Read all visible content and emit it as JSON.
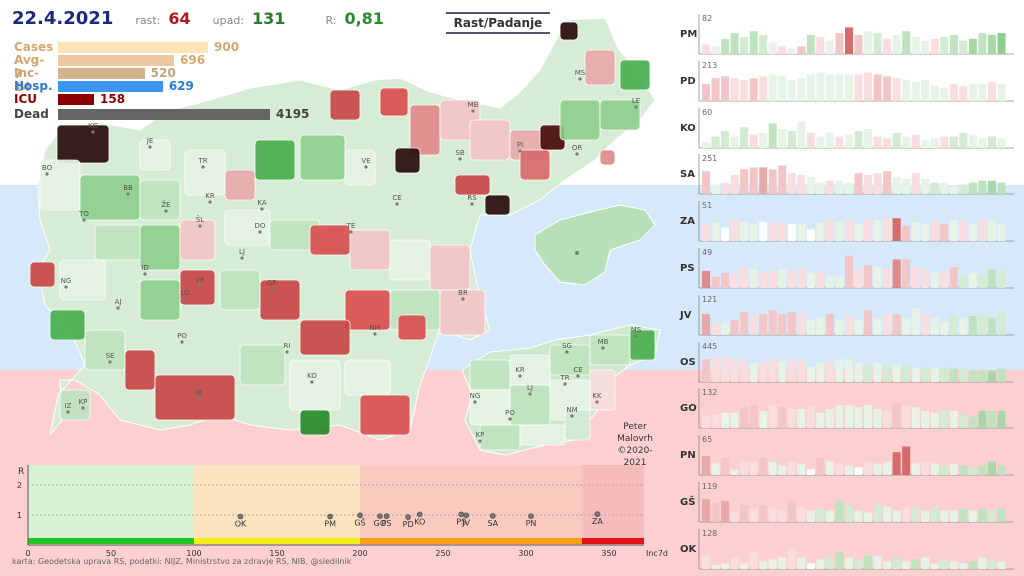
{
  "header": {
    "date": "22.4.2021",
    "rast_label": "rast:",
    "rast_value": "64",
    "upad_label": "upad:",
    "upad_value": "131",
    "r_label": "R:",
    "r_value": "0,81"
  },
  "title": "Rast/Padanje",
  "stats": [
    {
      "label": "Cases",
      "value": "900",
      "num": 900,
      "color": "#fde3b8",
      "text_color": "#d4a76a"
    },
    {
      "label": "Avg-7",
      "value": "696",
      "num": 696,
      "color": "#ecc7a0",
      "text_color": "#d4a76a"
    },
    {
      "label": "Inc-14",
      "value": "520",
      "num": 520,
      "color": "#d2b48c",
      "text_color": "#c4a37a"
    },
    {
      "label": "Hosp.",
      "value": "629",
      "num": 629,
      "color": "#3c96f0",
      "text_color": "#2a7ad6"
    },
    {
      "label": "ICU",
      "value": "158",
      "num": 158,
      "color": "#8b0000",
      "text_color": "#8b0000"
    },
    {
      "label": "Dead",
      "value": "4195",
      "num": 4195,
      "color": "#666666",
      "text_color": "#444444"
    }
  ],
  "map_labels": [
    "KG",
    "JE",
    "BO",
    "TR",
    "BB",
    "KR",
    "ŽE",
    "TO",
    "ŠL",
    "KA",
    "DO",
    "LJ",
    "ID",
    "VR",
    "NG",
    "AJ",
    "LO",
    "PO",
    "GR",
    "RI",
    "SE",
    "KO",
    "IB",
    "IZ",
    "KP",
    "VE",
    "CE",
    "SB",
    "PI",
    "OR",
    "LE",
    "MS",
    "MB",
    "RS",
    "NM",
    "BR",
    "TE"
  ],
  "inset1_labels": [
    "KR",
    "LJ",
    "TR",
    "CE",
    "MB",
    "MS",
    "SG",
    "NG",
    "PO",
    "NM",
    "KK",
    "KP"
  ],
  "scatter": {
    "r_axis_label": "R",
    "y_ticks": [
      "2",
      "1"
    ],
    "x_ticks": [
      "0",
      "50",
      "100",
      "150",
      "200",
      "250",
      "300",
      "350"
    ],
    "x_label": "Inc7d",
    "points": [
      {
        "label": "OK",
        "x": 128,
        "y": 0.95
      },
      {
        "label": "PM",
        "x": 182,
        "y": 0.95
      },
      {
        "label": "GŠ",
        "x": 200,
        "y": 0.99
      },
      {
        "label": "GO",
        "x": 212,
        "y": 0.96
      },
      {
        "label": "PS",
        "x": 216,
        "y": 0.96
      },
      {
        "label": "PD",
        "x": 229,
        "y": 0.93
      },
      {
        "label": "KO",
        "x": 236,
        "y": 1.02
      },
      {
        "label": "PS",
        "x": 261,
        "y": 1.02
      },
      {
        "label": "JV",
        "x": 264,
        "y": 0.99
      },
      {
        "label": "SA",
        "x": 280,
        "y": 0.97
      },
      {
        "label": "PN",
        "x": 303,
        "y": 0.96
      },
      {
        "label": "ZA",
        "x": 343,
        "y": 1.03
      }
    ]
  },
  "credit": "karta: Geodetska uprava RS,  podatki: NIJZ, Ministrstvo za zdravje RS, NIB, @sledilnik",
  "author": [
    "Peter",
    "Malovrh",
    "©2020-2021"
  ],
  "panels": [
    {
      "name": "PM",
      "max": "82",
      "values": [
        0.25,
        0.2,
        0.4,
        0.55,
        0.45,
        0.6,
        0.5,
        0.3,
        0.2,
        0.15,
        0.2,
        0.5,
        0.45,
        0.35,
        0.55,
        0.7,
        0.5,
        0.6,
        0.55,
        0.4,
        0.5,
        0.6,
        0.45,
        0.35,
        0.4,
        0.45,
        0.5,
        0.35,
        0.4,
        0.55,
        0.5,
        0.55
      ],
      "colors": [
        "#f8dede",
        "#e6f3e6",
        "#bfe3bf",
        "#bfe3bf",
        "#d2ebd2",
        "#bfe3bf",
        "#d2ebd2",
        "#e6f3e6",
        "#f8dede",
        "#e6f3e6",
        "#f2c6c6",
        "#bfe3bf",
        "#f8dede",
        "#e6f3e6",
        "#f2c6c6",
        "#d66b6b",
        "#f2c6c6",
        "#e6f3e6",
        "#d2ebd2",
        "#f8dede",
        "#e6f3e6",
        "#bfe3bf",
        "#e6f3e6",
        "#e6f3e6",
        "#f8dede",
        "#d2ebd2",
        "#bfe3bf",
        "#d2ebd2",
        "#a8d8a8",
        "#bfe3bf",
        "#a8d8a8",
        "#8fcc8f"
      ]
    },
    {
      "name": "PD",
      "max": "213",
      "values": [
        0.45,
        0.6,
        0.65,
        0.6,
        0.55,
        0.6,
        0.65,
        0.7,
        0.65,
        0.55,
        0.6,
        0.7,
        0.75,
        0.7,
        0.7,
        0.7,
        0.7,
        0.75,
        0.7,
        0.65,
        0.6,
        0.55,
        0.5,
        0.55,
        0.4,
        0.35,
        0.45,
        0.4,
        0.45,
        0.45,
        0.5,
        0.45
      ],
      "colors": [
        "#f2c6c6",
        "#f2c6c6",
        "#f2c6c6",
        "#f8dede",
        "#f8dede",
        "#f2c6c6",
        "#f8dede",
        "#e6f3e6",
        "#e6f3e6",
        "#e6f3e6",
        "#e6f3e6",
        "#e6f3e6",
        "#e6f3e6",
        "#e6f3e6",
        "#e6f3e6",
        "#e6f3e6",
        "#f8dede",
        "#f8dede",
        "#f2c6c6",
        "#f2c6c6",
        "#f8dede",
        "#e6f3e6",
        "#e6f3e6",
        "#e6f3e6",
        "#e6f3e6",
        "#e6f3e6",
        "#f8dede",
        "#f8dede",
        "#e6f3e6",
        "#e6f3e6",
        "#f8dede",
        "#e6f3e6"
      ]
    },
    {
      "name": "KO",
      "max": "60",
      "values": [
        0.15,
        0.3,
        0.45,
        0.3,
        0.55,
        0.35,
        0.4,
        0.65,
        0.5,
        0.45,
        0.7,
        0.4,
        0.3,
        0.4,
        0.3,
        0.35,
        0.45,
        0.5,
        0.3,
        0.25,
        0.4,
        0.3,
        0.35,
        0.2,
        0.25,
        0.3,
        0.3,
        0.4,
        0.35,
        0.25,
        0.3,
        0.25
      ],
      "colors": [
        "#e6f3e6",
        "#d2ebd2",
        "#d2ebd2",
        "#e6f3e6",
        "#d2ebd2",
        "#f8dede",
        "#e6f3e6",
        "#bfe3bf",
        "#e6f3e6",
        "#d2ebd2",
        "#e6f3e6",
        "#f8dede",
        "#e6f3e6",
        "#e6f3e6",
        "#f8dede",
        "#e6f3e6",
        "#d2ebd2",
        "#e6f3e6",
        "#f8dede",
        "#f8dede",
        "#d2ebd2",
        "#e6f3e6",
        "#f8dede",
        "#e6f3e6",
        "#e6f3e6",
        "#f8dede",
        "#d2ebd2",
        "#d2ebd2",
        "#e6f3e6",
        "#e6f3e6",
        "#d2ebd2",
        "#e6f3e6"
      ]
    },
    {
      "name": "SA",
      "max": "251",
      "values": [
        0.6,
        0.25,
        0.3,
        0.5,
        0.65,
        0.7,
        0.7,
        0.65,
        0.75,
        0.55,
        0.5,
        0.45,
        0.3,
        0.35,
        0.35,
        0.3,
        0.55,
        0.5,
        0.55,
        0.6,
        0.45,
        0.4,
        0.55,
        0.4,
        0.3,
        0.3,
        0.2,
        0.25,
        0.3,
        0.35,
        0.35,
        0.3
      ],
      "colors": [
        "#f2c6c6",
        "#e6f3e6",
        "#f8dede",
        "#f8dede",
        "#f2c6c6",
        "#f2c6c6",
        "#e8a9a9",
        "#f2c6c6",
        "#f2c6c6",
        "#f8dede",
        "#f8dede",
        "#e6f3e6",
        "#e6f3e6",
        "#f8dede",
        "#e6f3e6",
        "#e6f3e6",
        "#f2c6c6",
        "#f8dede",
        "#f8dede",
        "#f2c6c6",
        "#e6f3e6",
        "#e6f3e6",
        "#f8dede",
        "#e6f3e6",
        "#d2ebd2",
        "#e6f3e6",
        "#e6f3e6",
        "#d2ebd2",
        "#bfe3bf",
        "#bfe3bf",
        "#a8d8a8",
        "#bfe3bf"
      ]
    },
    {
      "name": "ZA",
      "max": "51",
      "values": [
        0.45,
        0.5,
        0.35,
        0.55,
        0.5,
        0.45,
        0.5,
        0.5,
        0.45,
        0.45,
        0.45,
        0.3,
        0.5,
        0.55,
        0.5,
        0.55,
        0.45,
        0.55,
        0.55,
        0.6,
        0.6,
        0.4,
        0.5,
        0.45,
        0.55,
        0.45,
        0.55,
        0.5,
        0.45,
        0.55,
        0.55,
        0.45
      ],
      "colors": [
        "#f8dede",
        "#e6f3e6",
        "#ffffff",
        "#f8dede",
        "#e6f3e6",
        "#e6f3e6",
        "#ffffff",
        "#f8dede",
        "#f8dede",
        "#ffffff",
        "#e6f3e6",
        "#ffffff",
        "#e6f3e6",
        "#f8dede",
        "#e6f3e6",
        "#f8dede",
        "#e6f3e6",
        "#f8dede",
        "#e6f3e6",
        "#f8dede",
        "#d66b6b",
        "#f2c6c6",
        "#e6f3e6",
        "#e6f3e6",
        "#f8dede",
        "#f2c6c6",
        "#e6f3e6",
        "#f8dede",
        "#e6f3e6",
        "#f8dede",
        "#e6f3e6",
        "#e6f3e6"
      ]
    },
    {
      "name": "PS",
      "max": "49",
      "values": [
        0.45,
        0.3,
        0.4,
        0.35,
        0.55,
        0.5,
        0.4,
        0.45,
        0.5,
        0.45,
        0.5,
        0.4,
        0.45,
        0.3,
        0.3,
        0.85,
        0.5,
        0.6,
        0.55,
        0.5,
        0.75,
        0.75,
        0.55,
        0.5,
        0.4,
        0.45,
        0.55,
        0.35,
        0.4,
        0.35,
        0.5,
        0.45
      ],
      "colors": [
        "#e08a8a",
        "#f2c6c6",
        "#f2c6c6",
        "#f8dede",
        "#f8dede",
        "#e6f3e6",
        "#f8dede",
        "#f8dede",
        "#e6f3e6",
        "#f8dede",
        "#f8dede",
        "#e6f3e6",
        "#f8dede",
        "#e6f3e6",
        "#e6f3e6",
        "#f2c6c6",
        "#f8dede",
        "#f2c6c6",
        "#e6f3e6",
        "#f8dede",
        "#e08a8a",
        "#f2c6c6",
        "#f8dede",
        "#f8dede",
        "#e6f3e6",
        "#f8dede",
        "#f2c6c6",
        "#d2ebd2",
        "#e6f3e6",
        "#d2ebd2",
        "#bfe3bf",
        "#d2ebd2"
      ]
    },
    {
      "name": "JV",
      "max": "121",
      "values": [
        0.55,
        0.3,
        0.3,
        0.4,
        0.6,
        0.5,
        0.55,
        0.65,
        0.55,
        0.6,
        0.55,
        0.4,
        0.45,
        0.55,
        0.4,
        0.5,
        0.4,
        0.65,
        0.45,
        0.55,
        0.55,
        0.45,
        0.7,
        0.55,
        0.45,
        0.35,
        0.5,
        0.45,
        0.5,
        0.55,
        0.45,
        0.6
      ],
      "colors": [
        "#e8a9a9",
        "#f8dede",
        "#e6f3e6",
        "#f2c6c6",
        "#f2c6c6",
        "#f8dede",
        "#f2c6c6",
        "#f2c6c6",
        "#f2c6c6",
        "#f2c6c6",
        "#f8dede",
        "#e6f3e6",
        "#e6f3e6",
        "#f2c6c6",
        "#e6f3e6",
        "#f8dede",
        "#e6f3e6",
        "#f2c6c6",
        "#e6f3e6",
        "#f8dede",
        "#f2c6c6",
        "#e6f3e6",
        "#e6f3e6",
        "#f8dede",
        "#e6f3e6",
        "#e6f3e6",
        "#d2ebd2",
        "#e6f3e6",
        "#bfe3bf",
        "#d2ebd2",
        "#bfe3bf",
        "#d2ebd2"
      ]
    },
    {
      "name": "OS",
      "max": "445",
      "values": [
        0.6,
        0.65,
        0.65,
        0.6,
        0.55,
        0.5,
        0.55,
        0.6,
        0.55,
        0.6,
        0.6,
        0.4,
        0.5,
        0.55,
        0.6,
        0.6,
        0.5,
        0.45,
        0.5,
        0.45,
        0.45,
        0.45,
        0.35,
        0.4,
        0.35,
        0.4,
        0.35,
        0.35,
        0.3,
        0.3,
        0.3,
        0.35
      ],
      "colors": [
        "#f2c6c6",
        "#f8dede",
        "#f8dede",
        "#f8dede",
        "#f8dede",
        "#e6f3e6",
        "#f8dede",
        "#f8dede",
        "#e6f3e6",
        "#f8dede",
        "#f8dede",
        "#e6f3e6",
        "#e6f3e6",
        "#f8dede",
        "#e6f3e6",
        "#e6f3e6",
        "#e6f3e6",
        "#d2ebd2",
        "#e6f3e6",
        "#d2ebd2",
        "#e6f3e6",
        "#d2ebd2",
        "#e6f3e6",
        "#d2ebd2",
        "#e6f3e6",
        "#d2ebd2",
        "#bfe3bf",
        "#d2ebd2",
        "#bfe3bf",
        "#bfe3bf",
        "#a8d8a8",
        "#bfe3bf"
      ]
    },
    {
      "name": "GO",
      "max": "132",
      "values": [
        0.3,
        0.35,
        0.4,
        0.4,
        0.55,
        0.6,
        0.45,
        0.6,
        0.55,
        0.5,
        0.5,
        0.55,
        0.4,
        0.5,
        0.6,
        0.6,
        0.55,
        0.6,
        0.5,
        0.45,
        0.65,
        0.6,
        0.55,
        0.45,
        0.4,
        0.45,
        0.45,
        0.35,
        0.3,
        0.45,
        0.45,
        0.45
      ],
      "colors": [
        "#f8dede",
        "#f8dede",
        "#e6f3e6",
        "#e6f3e6",
        "#f2c6c6",
        "#f2c6c6",
        "#e6f3e6",
        "#f8dede",
        "#f2c6c6",
        "#f8dede",
        "#e6f3e6",
        "#f8dede",
        "#e6f3e6",
        "#e6f3e6",
        "#e6f3e6",
        "#e6f3e6",
        "#e6f3e6",
        "#e6f3e6",
        "#e6f3e6",
        "#f8dede",
        "#f2c6c6",
        "#f8dede",
        "#e6f3e6",
        "#e6f3e6",
        "#e6f3e6",
        "#d2ebd2",
        "#e6f3e6",
        "#d2ebd2",
        "#bfe3bf",
        "#a8d8a8",
        "#bfe3bf",
        "#a8d8a8"
      ]
    },
    {
      "name": "PN",
      "max": "65",
      "values": [
        0.5,
        0.3,
        0.45,
        0.15,
        0.35,
        0.35,
        0.45,
        0.35,
        0.25,
        0.35,
        0.3,
        0.15,
        0.45,
        0.35,
        0.3,
        0.25,
        0.2,
        0.35,
        0.3,
        0.35,
        0.6,
        0.75,
        0.3,
        0.35,
        0.3,
        0.25,
        0.3,
        0.25,
        0.2,
        0.25,
        0.35,
        0.25
      ],
      "colors": [
        "#e8a9a9",
        "#e6f3e6",
        "#f2c6c6",
        "#e6f3e6",
        "#f8dede",
        "#f8dede",
        "#f2c6c6",
        "#e6f3e6",
        "#e6f3e6",
        "#f8dede",
        "#e6f3e6",
        "#ffffff",
        "#f2c6c6",
        "#e6f3e6",
        "#f8dede",
        "#e6f3e6",
        "#ffffff",
        "#f8dede",
        "#e6f3e6",
        "#e6f3e6",
        "#d66b6b",
        "#d66b6b",
        "#e6f3e6",
        "#f8dede",
        "#e6f3e6",
        "#d2ebd2",
        "#e6f3e6",
        "#bfe3bf",
        "#d2ebd2",
        "#bfe3bf",
        "#a8d8a8",
        "#bfe3bf"
      ]
    },
    {
      "name": "GŠ",
      "max": "119",
      "values": [
        0.6,
        0.5,
        0.55,
        0.25,
        0.45,
        0.35,
        0.45,
        0.35,
        0.3,
        0.55,
        0.4,
        0.3,
        0.35,
        0.3,
        0.55,
        0.45,
        0.3,
        0.25,
        0.45,
        0.4,
        0.3,
        0.35,
        0.4,
        0.3,
        0.4,
        0.3,
        0.3,
        0.35,
        0.3,
        0.35,
        0.3,
        0.35
      ],
      "colors": [
        "#e8a9a9",
        "#f2c6c6",
        "#e8a9a9",
        "#f8dede",
        "#f2c6c6",
        "#f8dede",
        "#f2c6c6",
        "#f8dede",
        "#f8dede",
        "#f2c6c6",
        "#f8dede",
        "#e6f3e6",
        "#d2ebd2",
        "#e6f3e6",
        "#bfe3bf",
        "#d2ebd2",
        "#e6f3e6",
        "#e6f3e6",
        "#d2ebd2",
        "#e6f3e6",
        "#e6f3e6",
        "#f8dede",
        "#d2ebd2",
        "#e6f3e6",
        "#d2ebd2",
        "#e6f3e6",
        "#e6f3e6",
        "#bfe3bf",
        "#e6f3e6",
        "#bfe3bf",
        "#d2ebd2",
        "#bfe3bf"
      ]
    },
    {
      "name": "OK",
      "max": "128",
      "values": [
        0.35,
        0.1,
        0.15,
        0.3,
        0.15,
        0.45,
        0.2,
        0.25,
        0.3,
        0.55,
        0.3,
        0.15,
        0.25,
        0.3,
        0.45,
        0.3,
        0.25,
        0.35,
        0.35,
        0.2,
        0.3,
        0.2,
        0.25,
        0.3,
        0.15,
        0.25,
        0.2,
        0.15,
        0.2,
        0.3,
        0.25,
        0.2
      ],
      "colors": [
        "#f8dede",
        "#e6f3e6",
        "#e6f3e6",
        "#f8dede",
        "#e6f3e6",
        "#f8dede",
        "#e6f3e6",
        "#e6f3e6",
        "#e6f3e6",
        "#f8dede",
        "#e6f3e6",
        "#ffffff",
        "#e6f3e6",
        "#d2ebd2",
        "#bfe3bf",
        "#e6f3e6",
        "#d2ebd2",
        "#bfe3bf",
        "#e6f3e6",
        "#e6f3e6",
        "#d2ebd2",
        "#e6f3e6",
        "#bfe3bf",
        "#e6f3e6",
        "#e6f3e6",
        "#d2ebd2",
        "#e6f3e6",
        "#e6f3e6",
        "#bfe3bf",
        "#e6f3e6",
        "#d2ebd2",
        "#e6f3e6"
      ]
    }
  ]
}
